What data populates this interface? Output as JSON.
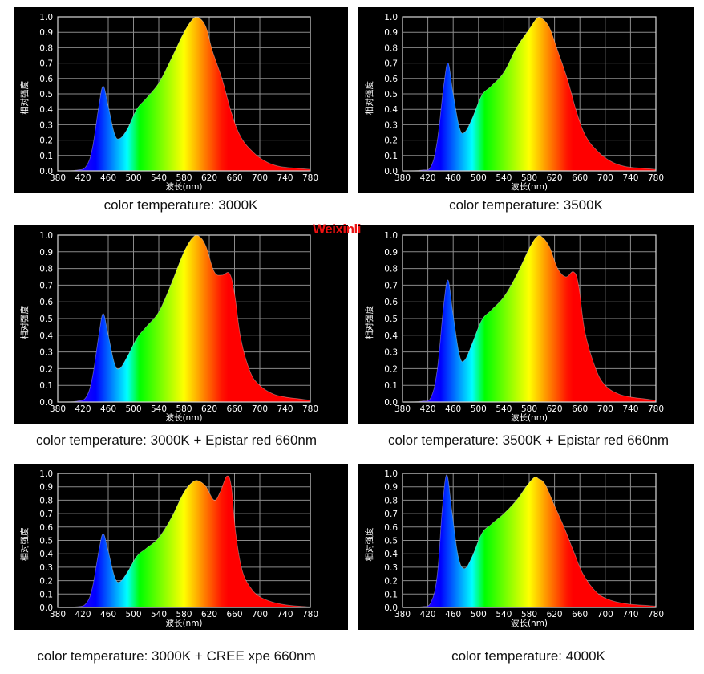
{
  "watermark": "Weixinli",
  "colors": {
    "background": "#000000",
    "grid": "#8a8a8a",
    "frame": "#d8d8d8",
    "caption": "#111111",
    "watermark": "#ee1111"
  },
  "chart_data": [
    {
      "type": "area",
      "title": "color temperature: 3000K",
      "xlabel": "波长(nm)",
      "ylabel": "相对强度",
      "xlim": [
        380,
        780
      ],
      "ylim": [
        0,
        1.0
      ],
      "grid": true,
      "xticks": [
        "380",
        "420",
        "460",
        "500",
        "540",
        "580",
        "620",
        "660",
        "700",
        "740",
        "780"
      ],
      "yticks": [
        "0.0",
        "0.1",
        "0.2",
        "0.3",
        "0.4",
        "0.5",
        "0.6",
        "0.7",
        "0.8",
        "0.9",
        "1.0"
      ],
      "x": [
        380,
        410,
        425,
        435,
        445,
        452,
        460,
        470,
        478,
        490,
        505,
        520,
        540,
        560,
        580,
        595,
        605,
        615,
        625,
        640,
        655,
        670,
        690,
        710,
        730,
        750,
        780
      ],
      "y": [
        0,
        0.005,
        0.03,
        0.15,
        0.42,
        0.55,
        0.42,
        0.24,
        0.21,
        0.27,
        0.4,
        0.47,
        0.57,
        0.73,
        0.9,
        0.99,
        0.99,
        0.93,
        0.78,
        0.6,
        0.38,
        0.22,
        0.12,
        0.06,
        0.03,
        0.02,
        0.01
      ]
    },
    {
      "type": "area",
      "title": "color temperature: 3500K",
      "xlabel": "波长(nm)",
      "ylabel": "相对强度",
      "xlim": [
        380,
        780
      ],
      "ylim": [
        0,
        1.0
      ],
      "grid": true,
      "xticks": [
        "380",
        "420",
        "460",
        "500",
        "540",
        "580",
        "620",
        "660",
        "700",
        "740",
        "780"
      ],
      "yticks": [
        "0.0",
        "0.1",
        "0.2",
        "0.3",
        "0.4",
        "0.5",
        "0.6",
        "0.7",
        "0.8",
        "0.9",
        "1.0"
      ],
      "x": [
        380,
        410,
        425,
        435,
        445,
        452,
        460,
        470,
        478,
        490,
        505,
        520,
        540,
        560,
        580,
        592,
        600,
        612,
        625,
        640,
        655,
        670,
        690,
        710,
        730,
        750,
        780
      ],
      "y": [
        0,
        0.005,
        0.03,
        0.2,
        0.55,
        0.7,
        0.5,
        0.28,
        0.25,
        0.34,
        0.49,
        0.55,
        0.64,
        0.8,
        0.92,
        0.99,
        0.99,
        0.93,
        0.78,
        0.6,
        0.38,
        0.22,
        0.12,
        0.06,
        0.03,
        0.02,
        0.01
      ]
    },
    {
      "type": "area",
      "title": "color temperature: 3000K + Epistar red 660nm",
      "xlabel": "波长(nm)",
      "ylabel": "相对强度",
      "xlim": [
        380,
        780
      ],
      "ylim": [
        0,
        1.0
      ],
      "grid": true,
      "xticks": [
        "380",
        "420",
        "460",
        "500",
        "540",
        "580",
        "620",
        "660",
        "700",
        "740",
        "780"
      ],
      "yticks": [
        "0.0",
        "0.1",
        "0.2",
        "0.3",
        "0.4",
        "0.5",
        "0.6",
        "0.7",
        "0.8",
        "0.9",
        "1.0"
      ],
      "x": [
        380,
        410,
        425,
        435,
        445,
        452,
        460,
        470,
        478,
        490,
        505,
        520,
        540,
        560,
        580,
        595,
        605,
        615,
        628,
        640,
        652,
        660,
        670,
        685,
        700,
        720,
        740,
        760,
        780
      ],
      "y": [
        0,
        0.005,
        0.03,
        0.15,
        0.4,
        0.53,
        0.4,
        0.23,
        0.2,
        0.27,
        0.38,
        0.45,
        0.54,
        0.71,
        0.9,
        0.99,
        0.99,
        0.93,
        0.78,
        0.76,
        0.77,
        0.65,
        0.38,
        0.18,
        0.1,
        0.05,
        0.03,
        0.02,
        0.01
      ]
    },
    {
      "type": "area",
      "title": "color temperature: 3500K + Epistar red 660nm",
      "xlabel": "波长(nm)",
      "ylabel": "相对强度",
      "xlim": [
        380,
        780
      ],
      "ylim": [
        0,
        1.0
      ],
      "grid": true,
      "xticks": [
        "380",
        "420",
        "460",
        "500",
        "540",
        "580",
        "620",
        "660",
        "700",
        "740",
        "780"
      ],
      "yticks": [
        "0.0",
        "0.1",
        "0.2",
        "0.3",
        "0.4",
        "0.5",
        "0.6",
        "0.7",
        "0.8",
        "0.9",
        "1.0"
      ],
      "x": [
        380,
        410,
        425,
        435,
        445,
        452,
        460,
        470,
        478,
        490,
        505,
        520,
        540,
        560,
        580,
        592,
        600,
        612,
        625,
        638,
        650,
        658,
        668,
        685,
        700,
        720,
        740,
        760,
        780
      ],
      "y": [
        0,
        0.005,
        0.03,
        0.2,
        0.58,
        0.73,
        0.52,
        0.28,
        0.25,
        0.35,
        0.49,
        0.55,
        0.63,
        0.76,
        0.92,
        0.99,
        0.99,
        0.93,
        0.8,
        0.75,
        0.78,
        0.7,
        0.42,
        0.2,
        0.1,
        0.05,
        0.03,
        0.02,
        0.01
      ]
    },
    {
      "type": "area",
      "title": "color temperature: 3000K + CREE xpe 660nm",
      "xlabel": "波长(nm)",
      "ylabel": "相对强度",
      "xlim": [
        380,
        780
      ],
      "ylim": [
        0,
        1.0
      ],
      "grid": true,
      "xticks": [
        "380",
        "420",
        "460",
        "500",
        "540",
        "580",
        "620",
        "660",
        "700",
        "740",
        "780"
      ],
      "yticks": [
        "0.0",
        "0.1",
        "0.2",
        "0.3",
        "0.4",
        "0.5",
        "0.6",
        "0.7",
        "0.8",
        "0.9",
        "1.0"
      ],
      "x": [
        380,
        410,
        425,
        435,
        445,
        452,
        460,
        470,
        478,
        490,
        505,
        520,
        540,
        560,
        580,
        595,
        605,
        615,
        628,
        638,
        648,
        655,
        662,
        672,
        685,
        700,
        720,
        740,
        760,
        780
      ],
      "y": [
        0,
        0.005,
        0.03,
        0.15,
        0.42,
        0.55,
        0.42,
        0.23,
        0.19,
        0.26,
        0.38,
        0.44,
        0.52,
        0.67,
        0.86,
        0.94,
        0.94,
        0.9,
        0.8,
        0.87,
        0.98,
        0.9,
        0.55,
        0.28,
        0.15,
        0.08,
        0.04,
        0.02,
        0.01,
        0.005
      ]
    },
    {
      "type": "area",
      "title": "color temperature: 4000K",
      "xlabel": "波长(nm)",
      "ylabel": "相对强度",
      "xlim": [
        380,
        780
      ],
      "ylim": [
        0,
        1.0
      ],
      "grid": true,
      "xticks": [
        "380",
        "420",
        "460",
        "500",
        "540",
        "580",
        "620",
        "660",
        "700",
        "740",
        "780"
      ],
      "yticks": [
        "0.0",
        "0.1",
        "0.2",
        "0.3",
        "0.4",
        "0.5",
        "0.6",
        "0.7",
        "0.8",
        "0.9",
        "1.0"
      ],
      "x": [
        380,
        410,
        425,
        435,
        443,
        450,
        458,
        468,
        478,
        490,
        505,
        520,
        540,
        560,
        575,
        588,
        595,
        605,
        620,
        635,
        650,
        665,
        685,
        705,
        730,
        750,
        780
      ],
      "y": [
        0,
        0.005,
        0.04,
        0.25,
        0.75,
        0.99,
        0.72,
        0.38,
        0.29,
        0.38,
        0.55,
        0.62,
        0.7,
        0.8,
        0.9,
        0.97,
        0.96,
        0.92,
        0.76,
        0.6,
        0.42,
        0.25,
        0.12,
        0.06,
        0.03,
        0.02,
        0.01
      ]
    }
  ]
}
